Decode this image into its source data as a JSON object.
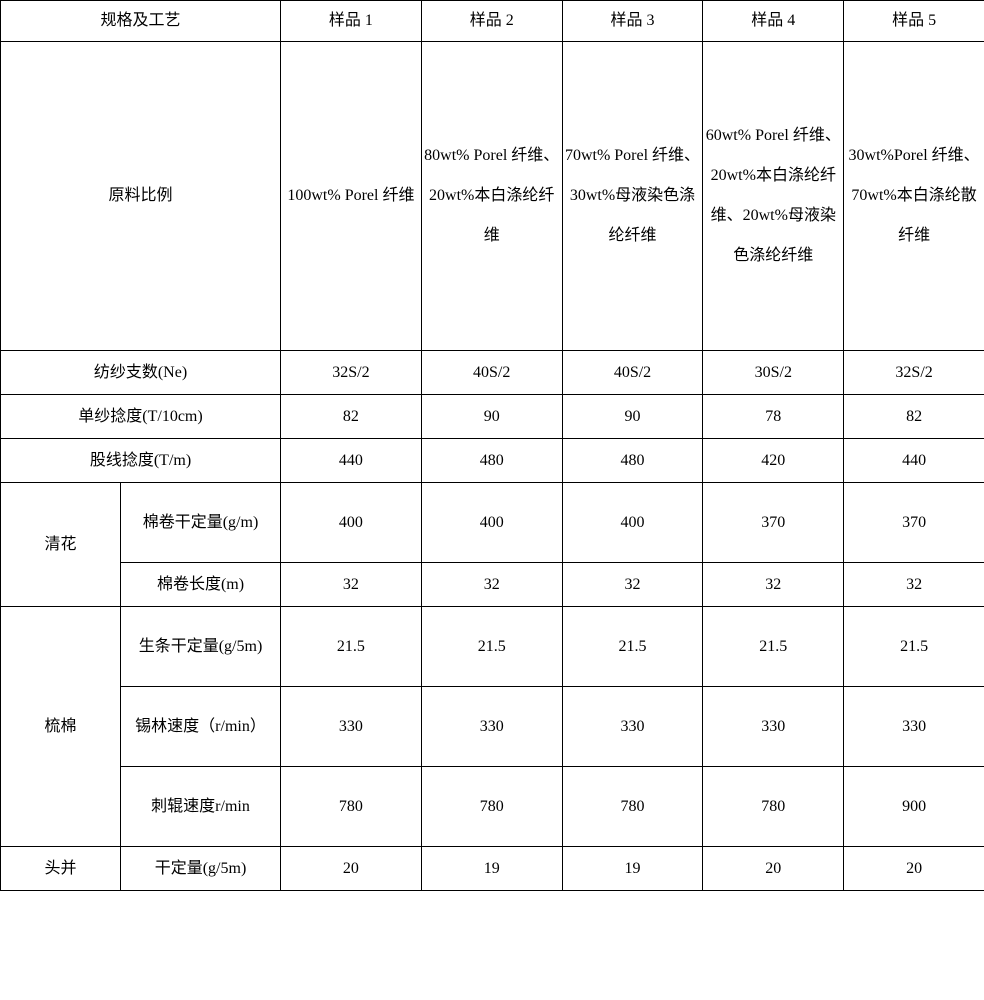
{
  "table": {
    "header": {
      "spec_col": "规格及工艺",
      "samples": [
        "样品 1",
        "样品 2",
        "样品 3",
        "样品 4",
        "样品 5"
      ]
    },
    "rows": {
      "material": {
        "label": "原料比例",
        "vals": [
          "100wt% Porel 纤维",
          "80wt% Porel 纤维、20wt%本白涤纶纤维",
          "70wt% Porel 纤维、30wt%母液染色涤纶纤维",
          "60wt% Porel 纤维、20wt%本白涤纶纤维、20wt%母液染色涤纶纤维",
          "30wt%Porel 纤维、70wt%本白涤纶散纤维"
        ]
      },
      "yarn_count": {
        "label": "纺纱支数(Ne)",
        "vals": [
          "32S/2",
          "40S/2",
          "40S/2",
          "30S/2",
          "32S/2"
        ]
      },
      "single_twist": {
        "label": "单纱捻度(T/10cm)",
        "vals": [
          "82",
          "90",
          "90",
          "78",
          "82"
        ]
      },
      "ply_twist": {
        "label": "股线捻度(T/m)",
        "vals": [
          "440",
          "480",
          "480",
          "420",
          "440"
        ]
      },
      "qinghua": {
        "group": "清花",
        "r1": {
          "label": "棉卷干定量(g/m)",
          "vals": [
            "400",
            "400",
            "400",
            "370",
            "370"
          ]
        },
        "r2": {
          "label": "棉卷长度(m)",
          "vals": [
            "32",
            "32",
            "32",
            "32",
            "32"
          ]
        }
      },
      "shumian": {
        "group": "梳棉",
        "r1": {
          "label": "生条干定量(g/5m)",
          "vals": [
            "21.5",
            "21.5",
            "21.5",
            "21.5",
            "21.5"
          ]
        },
        "r2": {
          "label": "锡林速度（r/min）",
          "vals": [
            "330",
            "330",
            "330",
            "330",
            "330"
          ]
        },
        "r3": {
          "label": "刺辊速度r/min",
          "vals": [
            "780",
            "780",
            "780",
            "780",
            "900"
          ]
        }
      },
      "toubing": {
        "group": "头并",
        "r1": {
          "label": "干定量(g/5m)",
          "vals": [
            "20",
            "19",
            "19",
            "20",
            "20"
          ]
        }
      }
    }
  }
}
